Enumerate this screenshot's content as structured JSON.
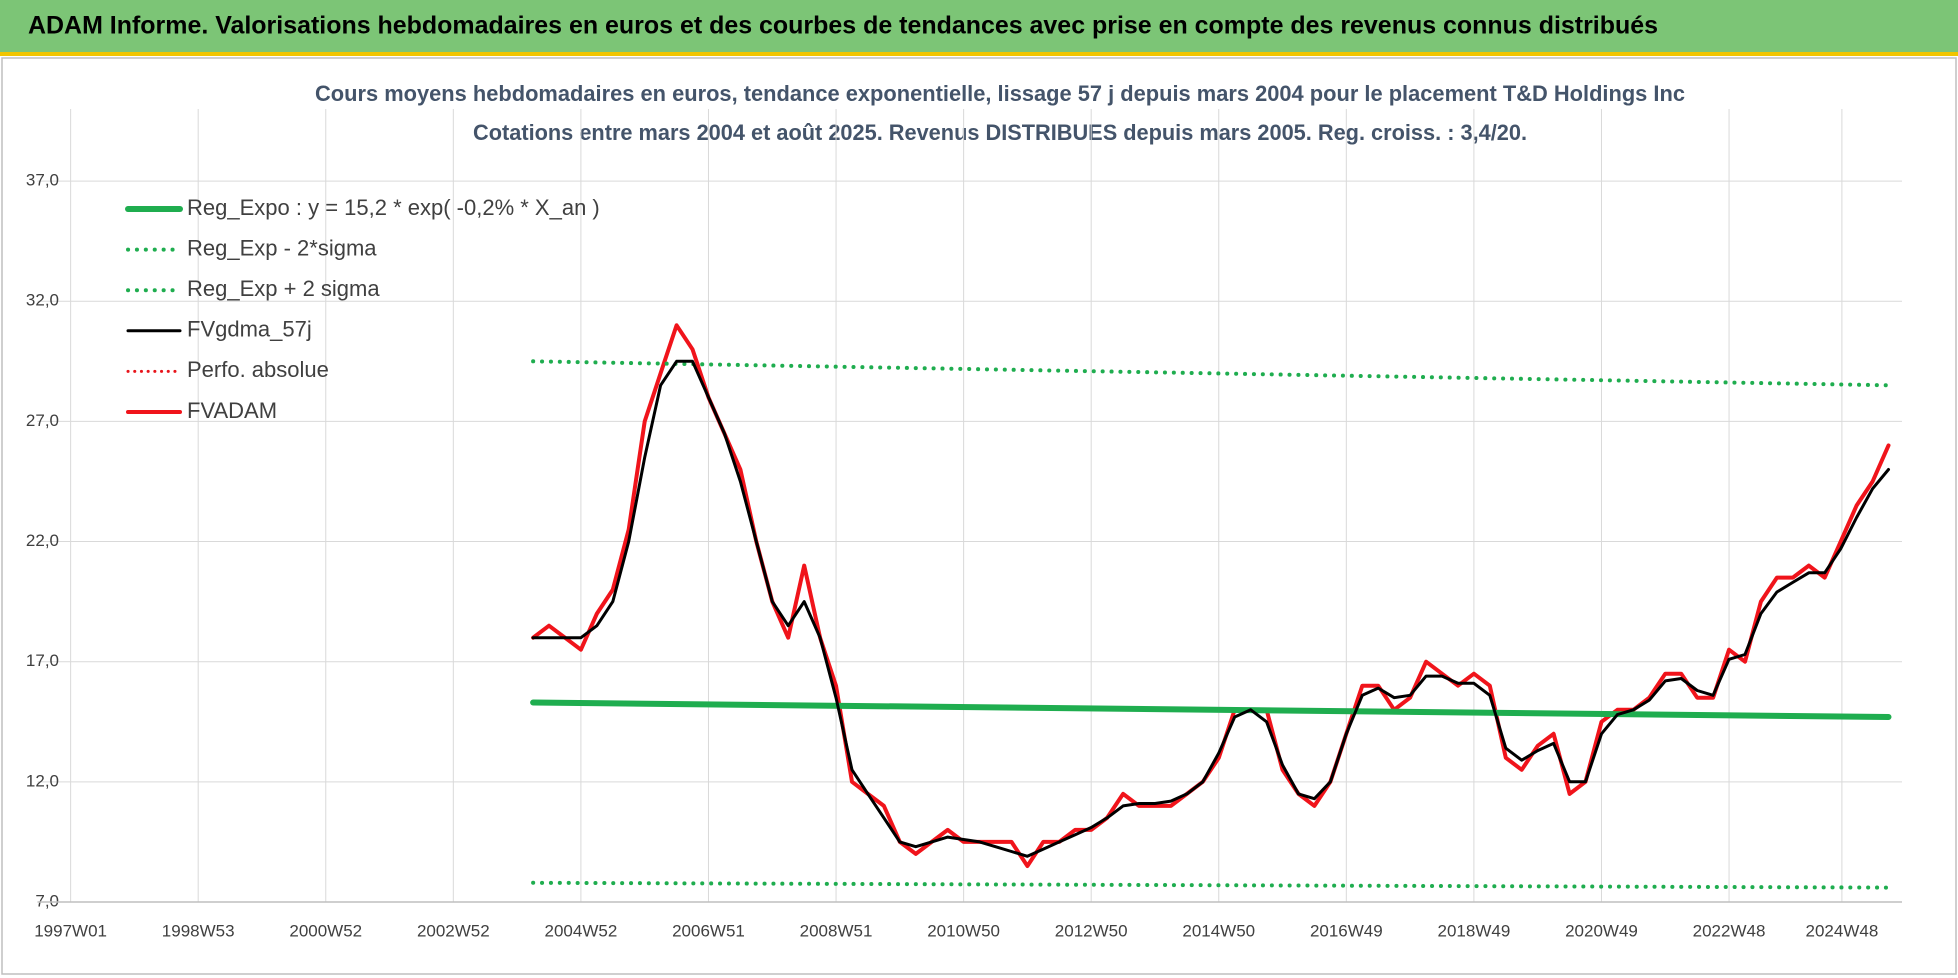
{
  "header": "ADAM Informe. Valorisations hebdomadaires en euros et des courbes de tendances avec prise en compte des revenus connus distribués",
  "chart_data": {
    "type": "line",
    "title": "Cours moyens hebdomadaires en euros, tendance exponentielle, lissage 57 j depuis mars 2004 pour le placement T&D Holdings Inc",
    "subtitle": "Cotations entre mars 2004 et août 2025. Revenus DISTRIBUES depuis mars 2005. Reg. croiss. : 3,4/20.",
    "xlim": [
      -27,
      1493
    ],
    "xticks": [
      {
        "value": 0,
        "label": "1997W01"
      },
      {
        "value": 104,
        "label": "1998W53"
      },
      {
        "value": 208,
        "label": "2000W52"
      },
      {
        "value": 312,
        "label": "2002W52"
      },
      {
        "value": 416,
        "label": "2004W52"
      },
      {
        "value": 520,
        "label": "2006W51"
      },
      {
        "value": 624,
        "label": "2008W51"
      },
      {
        "value": 728,
        "label": "2010W50"
      },
      {
        "value": 832,
        "label": "2012W50"
      },
      {
        "value": 936,
        "label": "2014W50"
      },
      {
        "value": 1040,
        "label": "2016W49"
      },
      {
        "value": 1144,
        "label": "2018W49"
      },
      {
        "value": 1248,
        "label": "2020W49"
      },
      {
        "value": 1352,
        "label": "2022W48"
      },
      {
        "value": 1444,
        "label": "2024W48"
      }
    ],
    "ylim": [
      7,
      40
    ],
    "yticks": [
      {
        "value": 7,
        "label": "7,0"
      },
      {
        "value": 12,
        "label": "12,0"
      },
      {
        "value": 17,
        "label": "17,0"
      },
      {
        "value": 22,
        "label": "22,0"
      },
      {
        "value": 27,
        "label": "27,0"
      },
      {
        "value": 32,
        "label": "32,0"
      },
      {
        "value": 37,
        "label": "37,0"
      }
    ],
    "grid": true,
    "legend": "top-left",
    "x": [
      377,
      390,
      403,
      416,
      429,
      442,
      455,
      468,
      481,
      494,
      507,
      520,
      533,
      546,
      559,
      572,
      585,
      598,
      611,
      624,
      637,
      650,
      663,
      676,
      689,
      702,
      715,
      728,
      741,
      754,
      767,
      780,
      793,
      806,
      819,
      832,
      845,
      858,
      871,
      884,
      897,
      910,
      923,
      936,
      949,
      962,
      975,
      988,
      1001,
      1014,
      1027,
      1040,
      1053,
      1066,
      1079,
      1092,
      1105,
      1118,
      1131,
      1144,
      1157,
      1170,
      1183,
      1196,
      1209,
      1222,
      1235,
      1248,
      1261,
      1274,
      1287,
      1300,
      1313,
      1326,
      1339,
      1352,
      1365,
      1378,
      1391,
      1404,
      1417,
      1430,
      1443,
      1456,
      1469,
      1482
    ],
    "series": [
      {
        "name": "Reg_Expo : y = 15,2 * exp( -0,2% *  X_an )",
        "color": "#1fad4f",
        "style": "solid",
        "width": 6,
        "x": [
          377,
          1482
        ],
        "values": [
          15.3,
          14.7
        ]
      },
      {
        "name": "Reg_Exp - 2*sigma",
        "color": "#1fad4f",
        "style": "dotted",
        "width": 4,
        "x": [
          377,
          1482
        ],
        "values": [
          7.8,
          7.6
        ]
      },
      {
        "name": "Reg_Exp + 2 sigma",
        "color": "#1fad4f",
        "style": "dotted",
        "width": 4,
        "x": [
          377,
          1482
        ],
        "values": [
          29.5,
          28.5
        ]
      },
      {
        "name": "FVgdma_57j",
        "color": "#000000",
        "style": "solid",
        "width": 3,
        "values": [
          18,
          18,
          18,
          18,
          18.5,
          19.5,
          22,
          25.5,
          28.5,
          29.5,
          29.5,
          28,
          26.5,
          24.5,
          22,
          19.5,
          18.5,
          19.5,
          18,
          15.5,
          12.5,
          11.5,
          10.5,
          9.5,
          9.3,
          9.5,
          9.7,
          9.6,
          9.5,
          9.3,
          9.1,
          8.9,
          9.2,
          9.5,
          9.8,
          10.1,
          10.5,
          11,
          11.1,
          11.1,
          11.2,
          11.5,
          12,
          13.2,
          14.7,
          15,
          14.5,
          12.7,
          11.5,
          11.3,
          12,
          14,
          15.6,
          15.9,
          15.5,
          15.6,
          16.4,
          16.4,
          16.1,
          16.1,
          15.6,
          13.4,
          12.9,
          13.3,
          13.6,
          12,
          12,
          14,
          14.8,
          15,
          15.4,
          16.2,
          16.3,
          15.8,
          15.6,
          17.1,
          17.3,
          19,
          19.9,
          20.3,
          20.7,
          20.7,
          21.7,
          23,
          24.2,
          25
        ]
      },
      {
        "name": "Perfo. absolue",
        "color": "#e8141b",
        "style": "dotted",
        "width": 3
      },
      {
        "name": "FVADAM",
        "color": "#f0141b",
        "style": "solid",
        "width": 4,
        "draw_first": true,
        "values": [
          18,
          18.5,
          18,
          17.5,
          19,
          20,
          22.5,
          27,
          29,
          31,
          30,
          28,
          26.5,
          25,
          22,
          19.5,
          18,
          21,
          18,
          16,
          12,
          11.5,
          11,
          9.5,
          9,
          9.5,
          10,
          9.5,
          9.5,
          9.5,
          9.5,
          8.5,
          9.5,
          9.5,
          10,
          10,
          10.5,
          11.5,
          11,
          11,
          11,
          11.5,
          12,
          13,
          15,
          15,
          15,
          12.5,
          11.5,
          11,
          12,
          14,
          16,
          16,
          15,
          15.5,
          17,
          16.5,
          16,
          16.5,
          16,
          13,
          12.5,
          13.5,
          14,
          11.5,
          12,
          14.5,
          15,
          15,
          15.5,
          16.5,
          16.5,
          15.5,
          15.5,
          17.5,
          17,
          19.5,
          20.5,
          20.5,
          21,
          20.5,
          22,
          23.5,
          24.5,
          26
        ]
      }
    ]
  }
}
